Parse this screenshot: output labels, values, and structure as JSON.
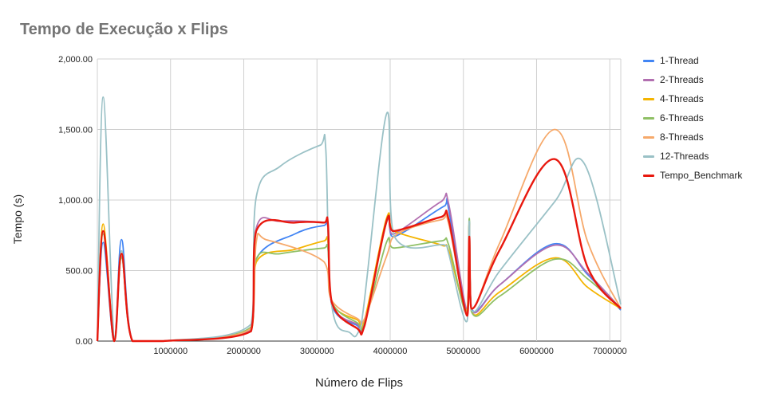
{
  "chart_data": {
    "type": "line",
    "title": "Tempo de Execução x Flips",
    "xlabel": "Número de Flips",
    "ylabel": "Tempo (s)",
    "xlim": [
      0,
      7150000
    ],
    "ylim": [
      0,
      2000
    ],
    "x_ticks": [
      1000000,
      2000000,
      3000000,
      4000000,
      5000000,
      6000000,
      7000000
    ],
    "x_tick_labels": [
      "1000000",
      "2000000",
      "3000000",
      "4000000",
      "5000000",
      "6000000",
      "7000000"
    ],
    "y_ticks": [
      0,
      500,
      1000,
      1500,
      2000
    ],
    "y_tick_labels": [
      "0.00",
      "500.00",
      "1,000.00",
      "1,500.00",
      "2,000.00"
    ],
    "grid": true,
    "legend_position": "right",
    "series": [
      {
        "name": "1-Thread",
        "color": "#4285f4",
        "points": [
          [
            0,
            0
          ],
          [
            80000,
            700
          ],
          [
            230000,
            0
          ],
          [
            330000,
            720
          ],
          [
            480000,
            0
          ],
          [
            900000,
            0
          ],
          [
            2100000,
            90
          ],
          [
            2170000,
            580
          ],
          [
            2700000,
            760
          ],
          [
            3100000,
            820
          ],
          [
            3150000,
            800
          ],
          [
            3200000,
            260
          ],
          [
            3550000,
            110
          ],
          [
            3650000,
            110
          ],
          [
            3950000,
            860
          ],
          [
            4050000,
            740
          ],
          [
            4750000,
            960
          ],
          [
            4800000,
            930
          ],
          [
            5050000,
            200
          ],
          [
            5080000,
            850
          ],
          [
            5110000,
            230
          ],
          [
            5500000,
            400
          ],
          [
            6250000,
            690
          ],
          [
            6700000,
            470
          ],
          [
            7150000,
            220
          ]
        ]
      },
      {
        "name": "2-Threads",
        "color": "#b26fb0",
        "points": [
          [
            0,
            0
          ],
          [
            80000,
            780
          ],
          [
            230000,
            0
          ],
          [
            330000,
            600
          ],
          [
            480000,
            0
          ],
          [
            900000,
            0
          ],
          [
            2100000,
            80
          ],
          [
            2170000,
            800
          ],
          [
            2500000,
            850
          ],
          [
            3100000,
            840
          ],
          [
            3150000,
            810
          ],
          [
            3200000,
            270
          ],
          [
            3550000,
            120
          ],
          [
            3650000,
            130
          ],
          [
            3950000,
            840
          ],
          [
            4050000,
            760
          ],
          [
            4700000,
            990
          ],
          [
            4800000,
            970
          ],
          [
            5050000,
            220
          ],
          [
            5080000,
            840
          ],
          [
            5110000,
            220
          ],
          [
            5500000,
            400
          ],
          [
            6250000,
            680
          ],
          [
            6700000,
            480
          ],
          [
            7150000,
            230
          ]
        ]
      },
      {
        "name": "4-Threads",
        "color": "#f4b400",
        "points": [
          [
            0,
            0
          ],
          [
            80000,
            830
          ],
          [
            230000,
            0
          ],
          [
            330000,
            620
          ],
          [
            480000,
            0
          ],
          [
            900000,
            0
          ],
          [
            2100000,
            70
          ],
          [
            2170000,
            560
          ],
          [
            2700000,
            650
          ],
          [
            3100000,
            710
          ],
          [
            3150000,
            700
          ],
          [
            3200000,
            280
          ],
          [
            3550000,
            150
          ],
          [
            3650000,
            150
          ],
          [
            3950000,
            870
          ],
          [
            4050000,
            780
          ],
          [
            4700000,
            680
          ],
          [
            4800000,
            640
          ],
          [
            5050000,
            220
          ],
          [
            5080000,
            840
          ],
          [
            5110000,
            210
          ],
          [
            5500000,
            350
          ],
          [
            6250000,
            590
          ],
          [
            6700000,
            380
          ],
          [
            7150000,
            230
          ]
        ]
      },
      {
        "name": "6-Threads",
        "color": "#8fc065",
        "points": [
          [
            0,
            0
          ],
          [
            80000,
            760
          ],
          [
            230000,
            0
          ],
          [
            330000,
            590
          ],
          [
            480000,
            0
          ],
          [
            900000,
            0
          ],
          [
            2100000,
            100
          ],
          [
            2170000,
            580
          ],
          [
            2500000,
            620
          ],
          [
            3100000,
            660
          ],
          [
            3150000,
            650
          ],
          [
            3200000,
            280
          ],
          [
            3550000,
            130
          ],
          [
            3650000,
            130
          ],
          [
            3950000,
            700
          ],
          [
            4050000,
            660
          ],
          [
            4700000,
            710
          ],
          [
            4800000,
            680
          ],
          [
            5050000,
            200
          ],
          [
            5080000,
            870
          ],
          [
            5110000,
            210
          ],
          [
            5500000,
            320
          ],
          [
            6250000,
            580
          ],
          [
            6700000,
            440
          ],
          [
            7150000,
            230
          ]
        ]
      },
      {
        "name": "8-Threads",
        "color": "#f6a96b",
        "points": [
          [
            0,
            0
          ],
          [
            80000,
            780
          ],
          [
            230000,
            0
          ],
          [
            330000,
            610
          ],
          [
            480000,
            0
          ],
          [
            900000,
            0
          ],
          [
            2100000,
            90
          ],
          [
            2170000,
            700
          ],
          [
            2300000,
            720
          ],
          [
            3100000,
            560
          ],
          [
            3200000,
            290
          ],
          [
            3550000,
            160
          ],
          [
            3650000,
            160
          ],
          [
            3950000,
            600
          ],
          [
            4100000,
            760
          ],
          [
            4700000,
            860
          ],
          [
            4800000,
            830
          ],
          [
            5050000,
            200
          ],
          [
            5080000,
            830
          ],
          [
            5110000,
            230
          ],
          [
            5500000,
            700
          ],
          [
            6250000,
            1500
          ],
          [
            6700000,
            700
          ],
          [
            7150000,
            230
          ]
        ]
      },
      {
        "name": "12-Threads",
        "color": "#9ac1c6",
        "points": [
          [
            0,
            0
          ],
          [
            80000,
            1730
          ],
          [
            230000,
            0
          ],
          [
            330000,
            640
          ],
          [
            480000,
            0
          ],
          [
            900000,
            0
          ],
          [
            2100000,
            120
          ],
          [
            2170000,
            1020
          ],
          [
            2500000,
            1240
          ],
          [
            3050000,
            1390
          ],
          [
            3120000,
            1360
          ],
          [
            3200000,
            260
          ],
          [
            3450000,
            60
          ],
          [
            3600000,
            100
          ],
          [
            3950000,
            1610
          ],
          [
            4050000,
            750
          ],
          [
            4750000,
            680
          ],
          [
            4800000,
            620
          ],
          [
            5050000,
            140
          ],
          [
            5080000,
            850
          ],
          [
            5110000,
            220
          ],
          [
            5500000,
            500
          ],
          [
            6250000,
            990
          ],
          [
            6650000,
            1260
          ],
          [
            7150000,
            260
          ]
        ]
      },
      {
        "name": "Tempo_Benchmark",
        "color": "#e8180e",
        "points": [
          [
            0,
            0
          ],
          [
            80000,
            780
          ],
          [
            230000,
            0
          ],
          [
            330000,
            620
          ],
          [
            480000,
            0
          ],
          [
            900000,
            0
          ],
          [
            2100000,
            70
          ],
          [
            2170000,
            780
          ],
          [
            2700000,
            840
          ],
          [
            3100000,
            840
          ],
          [
            3150000,
            830
          ],
          [
            3200000,
            280
          ],
          [
            3550000,
            90
          ],
          [
            3650000,
            110
          ],
          [
            3950000,
            850
          ],
          [
            4050000,
            780
          ],
          [
            4700000,
            880
          ],
          [
            4800000,
            860
          ],
          [
            5050000,
            180
          ],
          [
            5080000,
            740
          ],
          [
            5110000,
            230
          ],
          [
            5500000,
            650
          ],
          [
            6250000,
            1290
          ],
          [
            6700000,
            520
          ],
          [
            7150000,
            230
          ]
        ]
      }
    ]
  }
}
